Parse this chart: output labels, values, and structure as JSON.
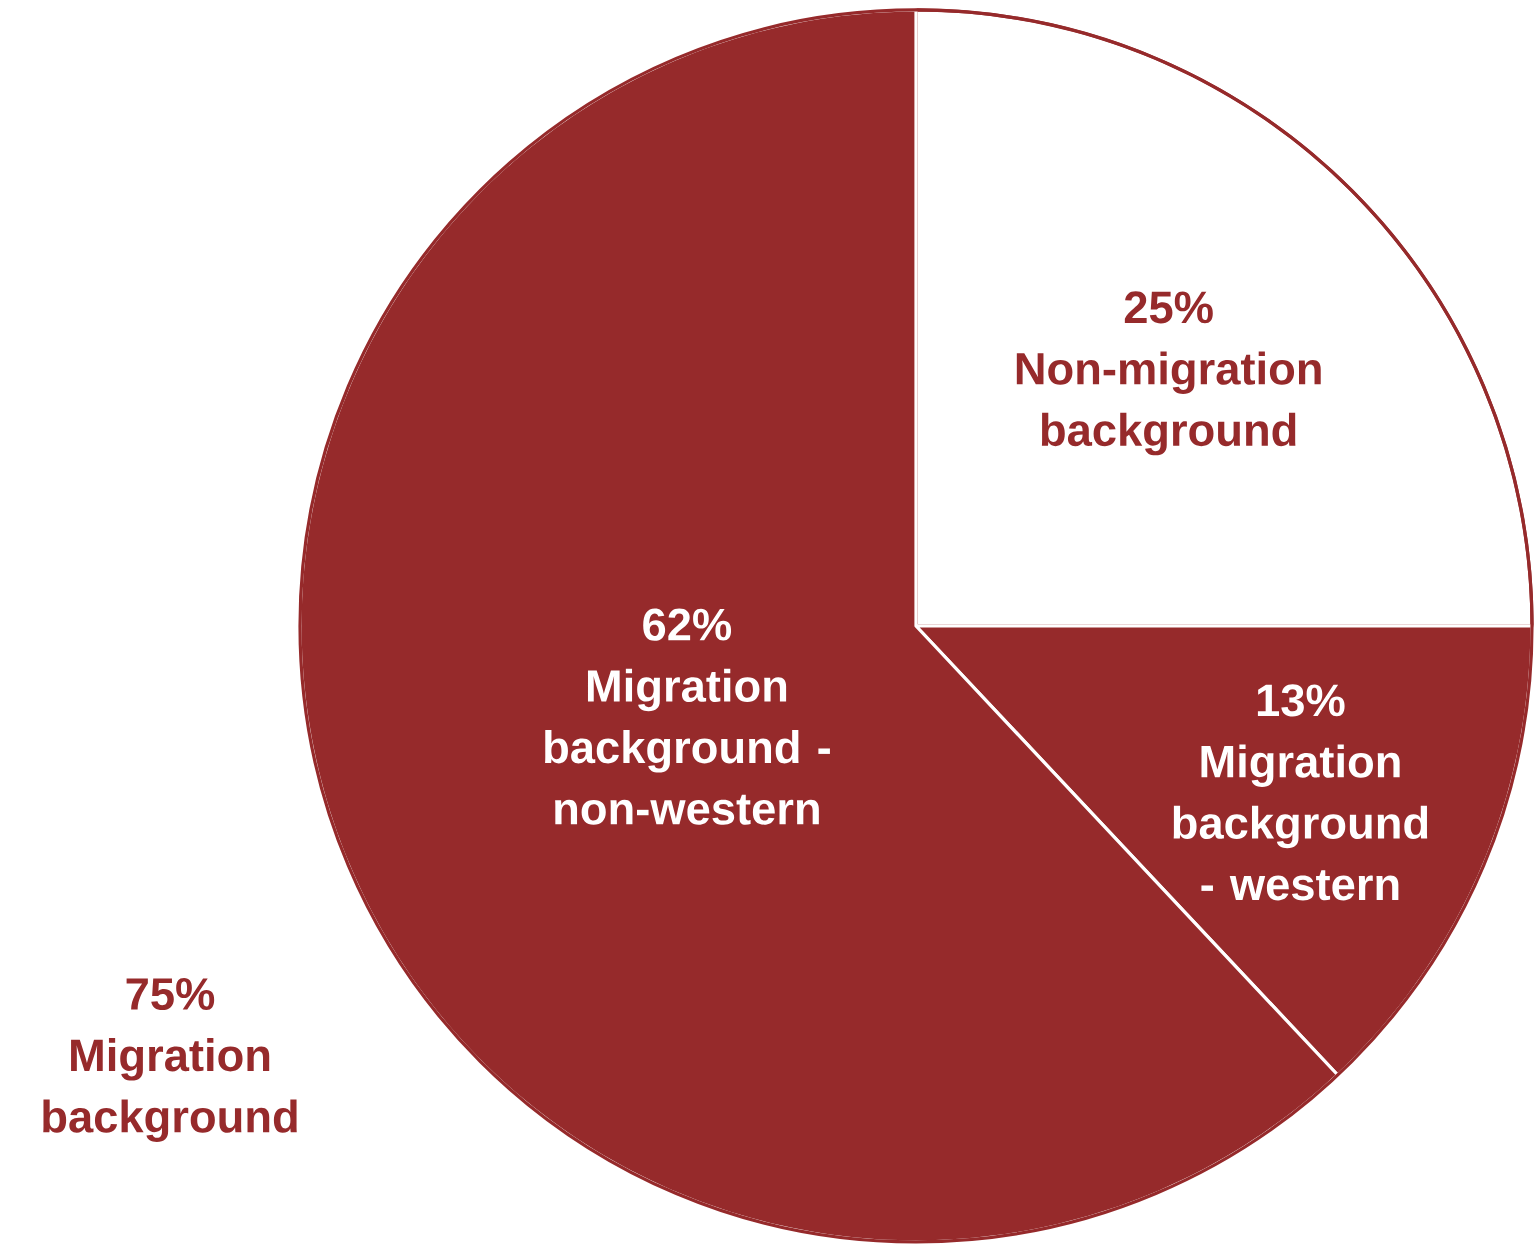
{
  "chart_data": {
    "type": "pie",
    "categories": [
      "Non-migration background",
      "Migration background - western",
      "Migration background - non-western"
    ],
    "values": [
      25,
      13,
      62
    ],
    "value_labels": [
      "25%",
      "13%",
      "62%"
    ],
    "colors": [
      "#ffffff",
      "#962a2b",
      "#962a2b"
    ],
    "annotations": [
      "75% Migration background"
    ]
  }
}
